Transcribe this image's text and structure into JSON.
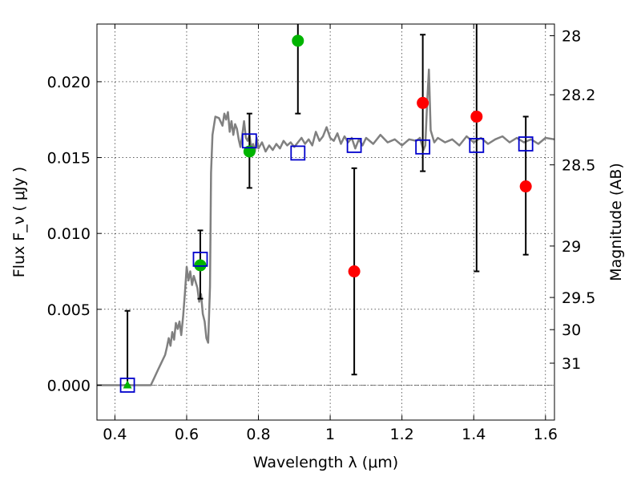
{
  "chart_data": {
    "type": "scatter",
    "xlabel": "Wavelength  λ (μm)",
    "ylabel": "Flux  F_ν  ( μJy )",
    "ylabel_right": "Magnitude (AB)",
    "xlim": [
      0.35,
      1.625
    ],
    "ylim": [
      -0.0023,
      0.0238
    ],
    "grid": true,
    "x_ticks": [
      0.4,
      0.6,
      0.8,
      1,
      1.2,
      1.4,
      1.6
    ],
    "x_tick_labels": [
      "0.4",
      "0.6",
      "0.8",
      "1",
      "1.2",
      "1.4",
      "1.6"
    ],
    "y_ticks": [
      0.0,
      0.005,
      0.01,
      0.015,
      0.02
    ],
    "y_tick_labels": [
      "0.000",
      "0.005",
      "0.010",
      "0.015",
      "0.020"
    ],
    "right_ticks": [
      {
        "label": "28",
        "flux": 0.02303
      },
      {
        "label": "28.2",
        "flux": 0.01914
      },
      {
        "label": "28.5",
        "flux": 0.01452
      },
      {
        "label": "29",
        "flux": 0.00917
      },
      {
        "label": "29.5",
        "flux": 0.00578
      },
      {
        "label": "30",
        "flux": 0.00366
      },
      {
        "label": "31",
        "flux": 0.00145
      }
    ],
    "colors": {
      "model": "#808080",
      "green_points": "#00b400",
      "red_points": "#ff0000",
      "squares": "#0000cc",
      "errorbars": "#000000"
    },
    "series": [
      {
        "marker": "triangle",
        "color": "#00b400",
        "points": [
          {
            "x": 0.435,
            "y": 0.0,
            "yerr_low": 0.0,
            "yerr_high": 0.0049
          }
        ]
      },
      {
        "marker": "circle",
        "color": "#00b400",
        "points": [
          {
            "x": 0.638,
            "y": 0.0079,
            "yerr_low": 0.0057,
            "yerr_high": 0.0102
          },
          {
            "x": 0.775,
            "y": 0.0154,
            "yerr_low": 0.013,
            "yerr_high": 0.0179
          },
          {
            "x": 0.91,
            "y": 0.0227,
            "yerr_low": 0.0179,
            "yerr_high": 0.0238
          }
        ]
      },
      {
        "marker": "circle",
        "color": "#ff0000",
        "points": [
          {
            "x": 1.067,
            "y": 0.0075,
            "yerr_low": 0.0007,
            "yerr_high": 0.0143
          },
          {
            "x": 1.258,
            "y": 0.0186,
            "yerr_low": 0.0141,
            "yerr_high": 0.0231
          },
          {
            "x": 1.408,
            "y": 0.0177,
            "yerr_low": 0.0075,
            "yerr_high": 0.0238
          },
          {
            "x": 1.545,
            "y": 0.0131,
            "yerr_low": 0.0086,
            "yerr_high": 0.0177
          }
        ]
      },
      {
        "marker": "square",
        "color": "#0000cc",
        "points": [
          {
            "x": 0.435,
            "y": 0.0
          },
          {
            "x": 0.638,
            "y": 0.0083
          },
          {
            "x": 0.775,
            "y": 0.0161
          },
          {
            "x": 0.91,
            "y": 0.0153
          },
          {
            "x": 1.067,
            "y": 0.0158
          },
          {
            "x": 1.258,
            "y": 0.0157
          },
          {
            "x": 1.408,
            "y": 0.0158
          },
          {
            "x": 1.545,
            "y": 0.0159
          }
        ]
      }
    ],
    "model_spectrum": {
      "x": [
        0.35,
        0.5,
        0.51,
        0.52,
        0.53,
        0.54,
        0.545,
        0.55,
        0.555,
        0.56,
        0.565,
        0.57,
        0.575,
        0.58,
        0.585,
        0.59,
        0.595,
        0.6,
        0.605,
        0.61,
        0.615,
        0.62,
        0.625,
        0.63,
        0.635,
        0.64,
        0.645,
        0.65,
        0.655,
        0.66,
        0.665,
        0.668,
        0.672,
        0.68,
        0.69,
        0.7,
        0.705,
        0.71,
        0.715,
        0.72,
        0.725,
        0.73,
        0.735,
        0.74,
        0.745,
        0.75,
        0.755,
        0.76,
        0.765,
        0.77,
        0.775,
        0.78,
        0.785,
        0.79,
        0.795,
        0.8,
        0.81,
        0.82,
        0.83,
        0.84,
        0.85,
        0.86,
        0.87,
        0.88,
        0.89,
        0.9,
        0.91,
        0.92,
        0.93,
        0.94,
        0.95,
        0.96,
        0.97,
        0.98,
        0.99,
        1.0,
        1.01,
        1.02,
        1.03,
        1.04,
        1.05,
        1.06,
        1.07,
        1.08,
        1.09,
        1.1,
        1.12,
        1.14,
        1.16,
        1.18,
        1.2,
        1.22,
        1.24,
        1.25,
        1.26,
        1.265,
        1.27,
        1.275,
        1.28,
        1.29,
        1.3,
        1.32,
        1.34,
        1.36,
        1.38,
        1.4,
        1.42,
        1.44,
        1.46,
        1.48,
        1.5,
        1.52,
        1.54,
        1.56,
        1.58,
        1.6,
        1.625
      ],
      "y": [
        0.0,
        0.0,
        0.0005,
        0.001,
        0.0015,
        0.002,
        0.0025,
        0.0031,
        0.0026,
        0.0035,
        0.003,
        0.0041,
        0.0037,
        0.0042,
        0.0033,
        0.0045,
        0.006,
        0.0078,
        0.0069,
        0.0075,
        0.0066,
        0.0072,
        0.0068,
        0.0064,
        0.0055,
        0.006,
        0.0047,
        0.0042,
        0.0031,
        0.0028,
        0.0065,
        0.014,
        0.0165,
        0.0177,
        0.0176,
        0.0171,
        0.0179,
        0.0175,
        0.018,
        0.0167,
        0.0174,
        0.0165,
        0.0172,
        0.0169,
        0.0162,
        0.0157,
        0.0165,
        0.0174,
        0.0163,
        0.0161,
        0.0165,
        0.0156,
        0.0159,
        0.0154,
        0.0163,
        0.0156,
        0.016,
        0.0154,
        0.0158,
        0.0155,
        0.0159,
        0.0156,
        0.0161,
        0.0158,
        0.016,
        0.0157,
        0.016,
        0.0163,
        0.0159,
        0.0162,
        0.0158,
        0.0167,
        0.0161,
        0.0164,
        0.017,
        0.0163,
        0.0161,
        0.0166,
        0.0159,
        0.0164,
        0.016,
        0.0163,
        0.0156,
        0.0162,
        0.0158,
        0.0163,
        0.0159,
        0.0165,
        0.016,
        0.0162,
        0.0158,
        0.0162,
        0.0161,
        0.0163,
        0.0155,
        0.0158,
        0.0185,
        0.0208,
        0.0168,
        0.016,
        0.0163,
        0.016,
        0.0162,
        0.0158,
        0.0164,
        0.016,
        0.0163,
        0.0159,
        0.0162,
        0.0164,
        0.016,
        0.0163,
        0.016,
        0.0162,
        0.0159,
        0.0163,
        0.0162
      ]
    }
  }
}
